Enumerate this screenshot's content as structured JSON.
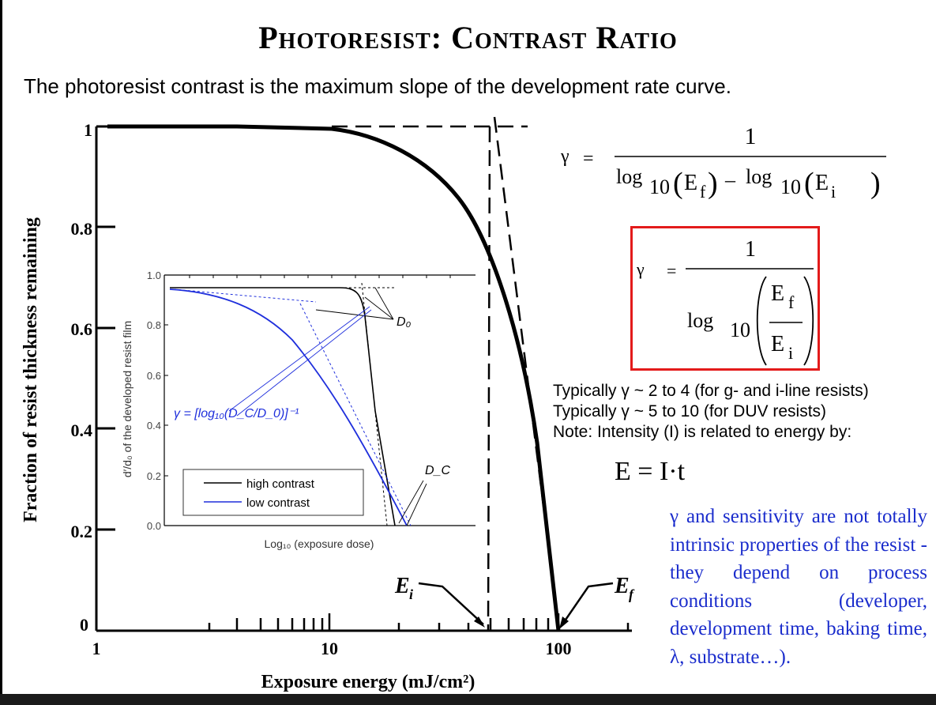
{
  "title": "Photoresist: Contrast Ratio",
  "subtitle": "The photoresist contrast is the maximum slope of the development rate curve.",
  "colors": {
    "box_border": "#e31b1b",
    "paragraph_text": "#1a2ccc",
    "low_contrast_curve": "#1f2fdc",
    "high_contrast_curve": "#000000"
  },
  "equation1": {
    "lhs": "γ",
    "eq": "=",
    "numerator": "1",
    "term1": "log",
    "base1": "10",
    "arg1_main": "E",
    "arg1_sub": "f",
    "minus": "–",
    "term2": "log",
    "base2": "10",
    "arg2_main": "E",
    "arg2_sub": "i"
  },
  "equation2": {
    "lhs": "γ",
    "eq": "=",
    "numerator": "1",
    "log": "log",
    "base": "10",
    "top_main": "E",
    "top_sub": "f",
    "bottom_main": "E",
    "bottom_sub": "i"
  },
  "notes": [
    "Typically γ ~ 2 to 4 (for g- and i-line resists)",
    "Typically γ ~ 5 to 10 (for DUV resists)",
    "Note: Intensity (I) is related to energy by:"
  ],
  "energy_equation": "E = I·t",
  "paragraph": "γ and sensitivity are not totally intrinsic properties of the resist - they depend on process conditions (developer, development time, baking time, λ, substrate…).",
  "chart_data": [
    {
      "type": "line",
      "xlabel": "Exposure energy (mJ/cm²)",
      "ylabel": "Fraction of resist thickness remaining",
      "x_scale": "log",
      "xlim": [
        1,
        150
      ],
      "ylim": [
        0,
        1
      ],
      "x_ticks": [
        "1",
        "10",
        "100"
      ],
      "y_ticks": [
        "0",
        "0.2",
        "0.4",
        "0.6",
        "0.8",
        "1"
      ],
      "series": [
        {
          "x": [
            1,
            3,
            8,
            12,
            20,
            30,
            40,
            50,
            60,
            70,
            80,
            90,
            100
          ],
          "y": [
            1,
            1,
            0.998,
            0.99,
            0.96,
            0.91,
            0.84,
            0.74,
            0.62,
            0.45,
            0.28,
            0.12,
            0
          ]
        }
      ],
      "annotations": [
        {
          "label": "E",
          "sub": "i",
          "x": 50
        },
        {
          "label": "E",
          "sub": "f",
          "x": 100
        }
      ]
    },
    {
      "type": "line",
      "xlabel": "Log₁₀ (exposure dose)",
      "ylabel": "d′/d₀ of the developed resist film",
      "ylim": [
        0,
        1
      ],
      "y_ticks": [
        "0.0",
        "0.2",
        "0.4",
        "0.6",
        "0.8",
        "1.0"
      ],
      "legend": [
        "high contrast",
        "low contrast"
      ],
      "formula": "γ = [log₁₀(D_C/D_0)]⁻¹",
      "labels": [
        "D₀",
        "D_C"
      ]
    }
  ]
}
